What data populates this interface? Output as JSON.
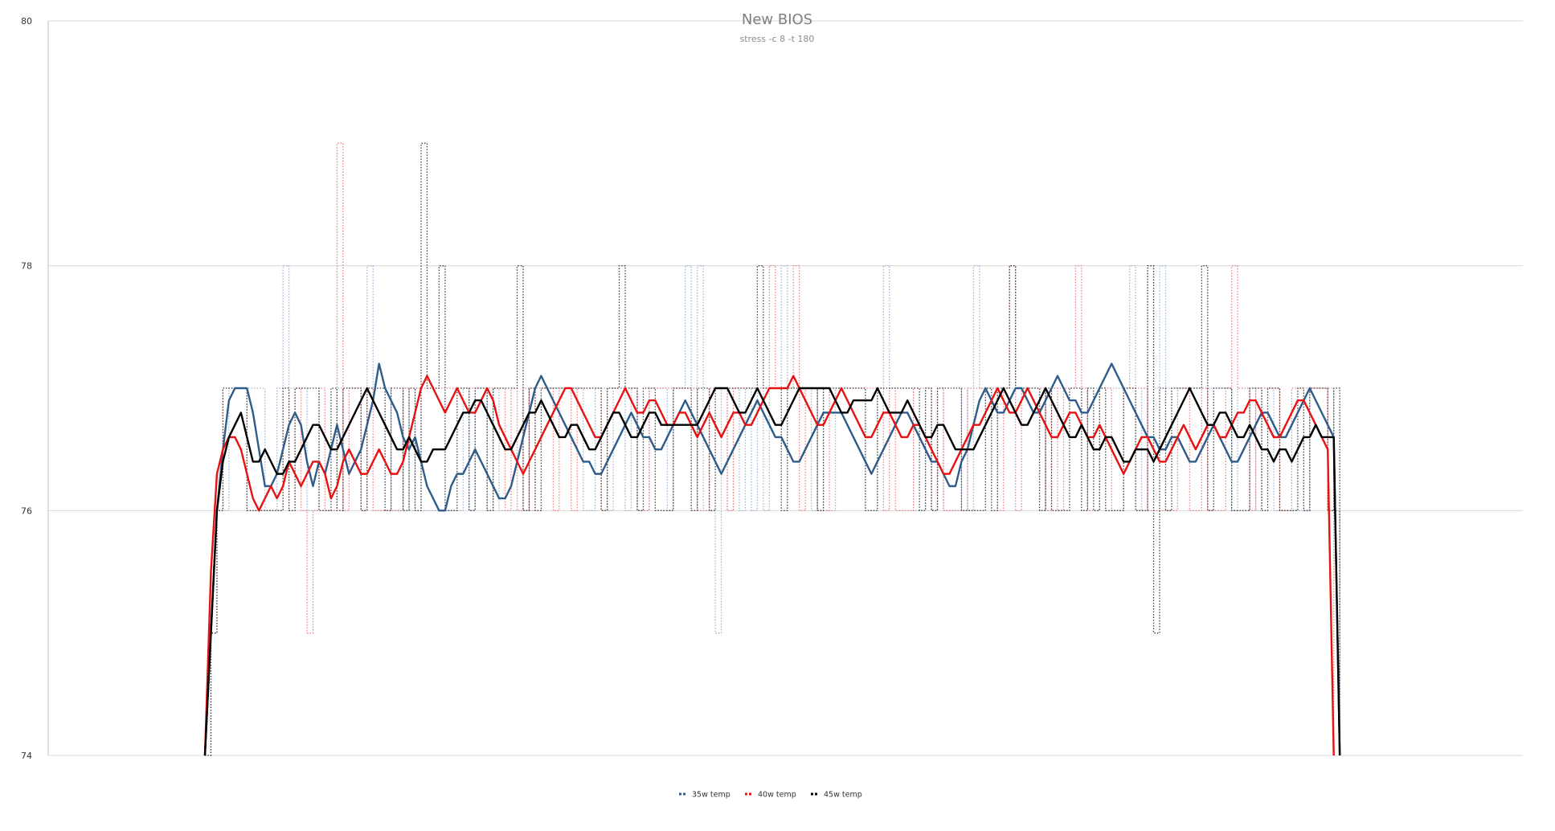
{
  "chart_data": {
    "type": "line",
    "title": "New BIOS",
    "subtitle": "stress -c 8 -t 180",
    "xlabel": "",
    "ylabel": "",
    "ylim": [
      74,
      80
    ],
    "yticks": [
      74,
      76,
      78,
      80
    ],
    "xlim": [
      0,
      195
    ],
    "grid": "horizontal",
    "legend_position": "bottom",
    "series": [
      {
        "name": "35w temp",
        "color": "#2e5b8a",
        "raw_color": "#9db6d6",
        "values": [
          74,
          75,
          76,
          76.5,
          76.9,
          77,
          77,
          77,
          76.8,
          76.5,
          76.2,
          76.2,
          76.3,
          76.5,
          76.7,
          76.8,
          76.7,
          76.4,
          76.2,
          76.4,
          76.3,
          76.5,
          76.7,
          76.5,
          76.3,
          76.4,
          76.5,
          76.7,
          76.9,
          77.2,
          77,
          76.9,
          76.8,
          76.6,
          76.5,
          76.6,
          76.4,
          76.2,
          76.1,
          76,
          76,
          76.2,
          76.3,
          76.3,
          76.4,
          76.5,
          76.4,
          76.3,
          76.2,
          76.1,
          76.1,
          76.2,
          76.4,
          76.6,
          76.8,
          77,
          77.1,
          77,
          76.9,
          76.8,
          76.7,
          76.6,
          76.5,
          76.4,
          76.4,
          76.3,
          76.3,
          76.4,
          76.5,
          76.6,
          76.7,
          76.8,
          76.7,
          76.6,
          76.6,
          76.5,
          76.5,
          76.6,
          76.7,
          76.8,
          76.9,
          76.8,
          76.7,
          76.6,
          76.5,
          76.4,
          76.3,
          76.4,
          76.5,
          76.6,
          76.7,
          76.8,
          76.9,
          76.8,
          76.7,
          76.6,
          76.6,
          76.5,
          76.4,
          76.4,
          76.5,
          76.6,
          76.7,
          76.8,
          76.8,
          76.8,
          76.8,
          76.7,
          76.6,
          76.5,
          76.4,
          76.3,
          76.4,
          76.5,
          76.6,
          76.7,
          76.8,
          76.8,
          76.7,
          76.6,
          76.5,
          76.4,
          76.4,
          76.3,
          76.2,
          76.2,
          76.4,
          76.5,
          76.7,
          76.9,
          77,
          76.9,
          76.8,
          76.8,
          76.9,
          77,
          77,
          76.9,
          76.8,
          76.8,
          76.9,
          77,
          77.1,
          77,
          76.9,
          76.9,
          76.8,
          76.8,
          76.9,
          77,
          77.1,
          77.2,
          77.1,
          77,
          76.9,
          76.8,
          76.7,
          76.6,
          76.6,
          76.5,
          76.5,
          76.6,
          76.6,
          76.5,
          76.4,
          76.4,
          76.5,
          76.6,
          76.7,
          76.6,
          76.5,
          76.4,
          76.4,
          76.5,
          76.6,
          76.7,
          76.8,
          76.8,
          76.7,
          76.6,
          76.6,
          76.7,
          76.8,
          76.9,
          77,
          76.9,
          76.8,
          76.7,
          76.6,
          74
        ]
      },
      {
        "name": "40w temp",
        "color": "#e81010",
        "raw_color": "#f28080",
        "values": [
          74,
          75.5,
          76.3,
          76.5,
          76.6,
          76.6,
          76.5,
          76.3,
          76.1,
          76,
          76.1,
          76.2,
          76.1,
          76.2,
          76.4,
          76.3,
          76.2,
          76.3,
          76.4,
          76.4,
          76.3,
          76.1,
          76.2,
          76.4,
          76.5,
          76.4,
          76.3,
          76.3,
          76.4,
          76.5,
          76.4,
          76.3,
          76.3,
          76.4,
          76.6,
          76.8,
          77,
          77.1,
          77,
          76.9,
          76.8,
          76.9,
          77,
          76.9,
          76.8,
          76.8,
          76.9,
          77,
          76.9,
          76.7,
          76.6,
          76.5,
          76.4,
          76.3,
          76.4,
          76.5,
          76.6,
          76.7,
          76.8,
          76.9,
          77,
          77,
          76.9,
          76.8,
          76.7,
          76.6,
          76.6,
          76.7,
          76.8,
          76.9,
          77,
          76.9,
          76.8,
          76.8,
          76.9,
          76.9,
          76.8,
          76.7,
          76.7,
          76.8,
          76.8,
          76.7,
          76.6,
          76.7,
          76.8,
          76.7,
          76.6,
          76.7,
          76.8,
          76.8,
          76.7,
          76.7,
          76.8,
          76.9,
          77,
          77,
          77,
          77,
          77.1,
          77,
          76.9,
          76.8,
          76.7,
          76.7,
          76.8,
          76.9,
          77,
          76.9,
          76.8,
          76.7,
          76.6,
          76.6,
          76.7,
          76.8,
          76.8,
          76.7,
          76.6,
          76.6,
          76.7,
          76.7,
          76.6,
          76.5,
          76.4,
          76.3,
          76.3,
          76.4,
          76.5,
          76.6,
          76.7,
          76.7,
          76.8,
          76.9,
          77,
          76.9,
          76.8,
          76.8,
          76.9,
          77,
          76.9,
          76.8,
          76.7,
          76.6,
          76.6,
          76.7,
          76.8,
          76.8,
          76.7,
          76.6,
          76.6,
          76.7,
          76.6,
          76.5,
          76.4,
          76.3,
          76.4,
          76.5,
          76.6,
          76.6,
          76.5,
          76.4,
          76.4,
          76.5,
          76.6,
          76.7,
          76.6,
          76.5,
          76.6,
          76.7,
          76.7,
          76.6,
          76.6,
          76.7,
          76.8,
          76.8,
          76.9,
          76.9,
          76.8,
          76.7,
          76.6,
          76.6,
          76.7,
          76.8,
          76.9,
          76.9,
          76.8,
          76.7,
          76.6,
          76.5,
          74
        ]
      },
      {
        "name": "45w temp",
        "color": "#000000",
        "raw_color": "#404040",
        "values": [
          74,
          75,
          76,
          76.4,
          76.6,
          76.7,
          76.8,
          76.6,
          76.4,
          76.4,
          76.5,
          76.4,
          76.3,
          76.3,
          76.4,
          76.4,
          76.5,
          76.6,
          76.7,
          76.7,
          76.6,
          76.5,
          76.5,
          76.6,
          76.7,
          76.8,
          76.9,
          77,
          76.9,
          76.8,
          76.7,
          76.6,
          76.5,
          76.5,
          76.6,
          76.5,
          76.4,
          76.4,
          76.5,
          76.5,
          76.5,
          76.6,
          76.7,
          76.8,
          76.8,
          76.9,
          76.9,
          76.8,
          76.7,
          76.6,
          76.5,
          76.5,
          76.6,
          76.7,
          76.8,
          76.8,
          76.9,
          76.8,
          76.7,
          76.6,
          76.6,
          76.7,
          76.7,
          76.6,
          76.5,
          76.5,
          76.6,
          76.7,
          76.8,
          76.8,
          76.7,
          76.6,
          76.6,
          76.7,
          76.8,
          76.8,
          76.7,
          76.7,
          76.7,
          76.7,
          76.7,
          76.7,
          76.7,
          76.8,
          76.9,
          77,
          77,
          77,
          76.9,
          76.8,
          76.8,
          76.9,
          77,
          76.9,
          76.8,
          76.7,
          76.7,
          76.8,
          76.9,
          77,
          77,
          77,
          77,
          77,
          77,
          76.9,
          76.8,
          76.8,
          76.9,
          76.9,
          76.9,
          76.9,
          77,
          76.9,
          76.8,
          76.8,
          76.8,
          76.9,
          76.8,
          76.7,
          76.6,
          76.6,
          76.7,
          76.7,
          76.6,
          76.5,
          76.5,
          76.5,
          76.5,
          76.6,
          76.7,
          76.8,
          76.9,
          77,
          76.9,
          76.8,
          76.7,
          76.7,
          76.8,
          76.9,
          77,
          76.9,
          76.8,
          76.7,
          76.6,
          76.6,
          76.7,
          76.6,
          76.5,
          76.5,
          76.6,
          76.6,
          76.5,
          76.4,
          76.4,
          76.5,
          76.5,
          76.5,
          76.4,
          76.5,
          76.6,
          76.7,
          76.8,
          76.9,
          77,
          76.9,
          76.8,
          76.7,
          76.7,
          76.8,
          76.8,
          76.7,
          76.6,
          76.6,
          76.7,
          76.6,
          76.5,
          76.5,
          76.4,
          76.5,
          76.5,
          76.4,
          76.5,
          76.6,
          76.6,
          76.7,
          76.6,
          76.6,
          76.6,
          74
        ]
      }
    ]
  }
}
